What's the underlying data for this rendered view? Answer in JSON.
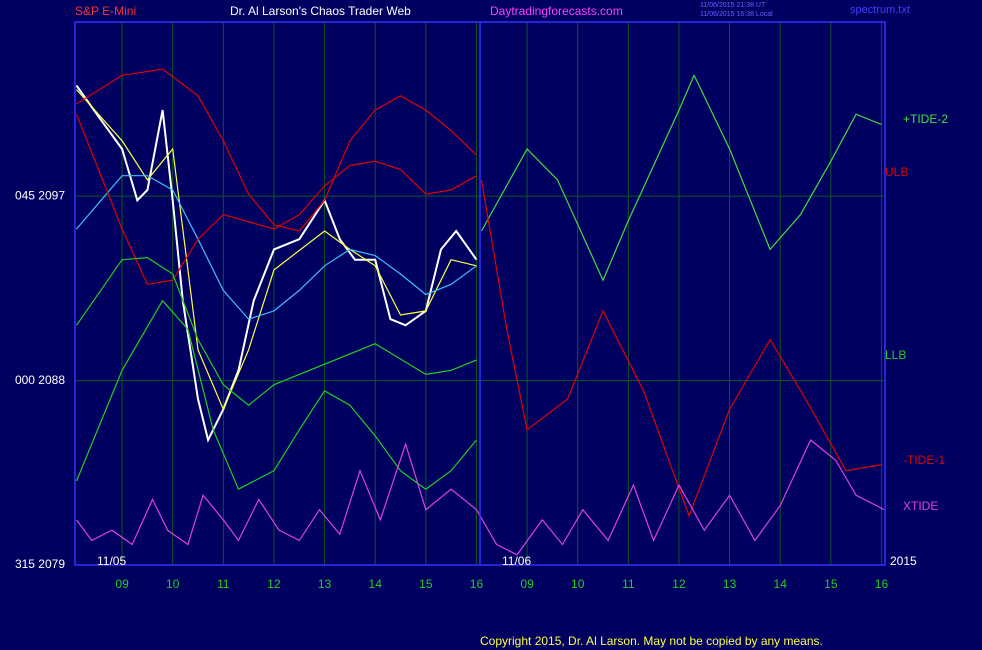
{
  "chart_data": {
    "type": "line",
    "title": "Dr. Al Larson's Chaos Trader Web",
    "instrument": "S&P E-Mini",
    "site": "Daytradingforecasts.com",
    "timestamps": [
      "11/06/2015 21:38 UT",
      "11/06/2015 16:38 Local"
    ],
    "file": "spectrum.txt",
    "dates": [
      "11/05",
      "11/06",
      "2015"
    ],
    "copyright": "Copyright 2015, Dr. Al Larson. May not be copied by any means.",
    "xlim": [
      8.07,
      24.07
    ],
    "xticks": [
      {
        "value": 9,
        "label": "09"
      },
      10,
      11,
      12,
      13,
      14,
      15,
      16,
      {
        "value": 17,
        "label": "09"
      },
      {
        "value": 18,
        "label": "10"
      },
      {
        "value": 19,
        "label": "11"
      },
      {
        "value": 20,
        "label": "12"
      },
      {
        "value": 21,
        "label": "13"
      },
      {
        "value": 22,
        "label": "14"
      },
      {
        "value": 23,
        "label": "15"
      },
      {
        "value": 24,
        "label": "16"
      }
    ],
    "ylim": [
      2079,
      2105.5
    ],
    "yticks": [
      {
        "value": 2079,
        "label": "315  2079"
      },
      {
        "value": 2088,
        "label": "000  2088"
      },
      {
        "value": 2097,
        "label": "045  2097"
      }
    ],
    "grid": true,
    "series": [
      {
        "color": "#ffffff",
        "x": [
          8.1,
          8.5,
          9,
          9.3,
          9.5,
          9.8,
          10,
          10.2,
          10.5,
          10.7,
          11,
          11.3,
          11.6,
          12,
          12.5,
          13,
          13.3,
          13.6,
          14,
          14.3,
          14.6,
          15,
          15.3,
          15.6,
          16
        ],
        "values": [
          2102.4,
          2101.0,
          2099.3,
          2096.8,
          2097.3,
          2101.2,
          2096.8,
          2091.9,
          2087.1,
          2085.1,
          2086.6,
          2088.5,
          2091.9,
          2094.4,
          2094.9,
          2096.8,
          2094.9,
          2093.9,
          2093.9,
          2091.0,
          2090.7,
          2091.4,
          2094.4,
          2095.3,
          2093.9
        ]
      },
      {
        "color": "#ffff40",
        "x": [
          8.1,
          9,
          9.5,
          10,
          10.5,
          11,
          11.5,
          12,
          13,
          13.5,
          14,
          14.5,
          15,
          15.5,
          16
        ],
        "values": [
          2102.2,
          2099.7,
          2097.8,
          2099.3,
          2089.5,
          2086.6,
          2089.5,
          2093.4,
          2095.3,
          2094.4,
          2093.6,
          2091.2,
          2091.4,
          2093.9,
          2093.6
        ]
      },
      {
        "color": "#40c0ff",
        "x": [
          8.1,
          9,
          9.5,
          10,
          10.5,
          11,
          11.5,
          12,
          12.5,
          13,
          13.5,
          14,
          14.5,
          15,
          15.5,
          16
        ],
        "values": [
          2095.4,
          2098.0,
          2098.0,
          2097.3,
          2094.9,
          2092.4,
          2091.0,
          2091.4,
          2092.4,
          2093.6,
          2094.4,
          2094.1,
          2093.2,
          2092.2,
          2092.7,
          2093.6
        ]
      },
      {
        "color": "#e00000",
        "x": [
          8.1,
          9,
          9.8,
          10.5,
          11,
          11.5,
          12,
          12.5,
          13,
          13.5,
          14,
          14.5,
          15,
          15.5,
          16
        ],
        "values": [
          2101.5,
          2102.9,
          2103.2,
          2101.9,
          2099.7,
          2097.1,
          2095.6,
          2095.3,
          2096.8,
          2099.7,
          2101.2,
          2101.9,
          2101.2,
          2100.2,
          2099.0
        ]
      },
      {
        "name": "ULB",
        "color": "#e00000",
        "x": [
          8.1,
          9,
          9.5,
          10,
          10.5,
          11,
          12,
          12.5,
          13,
          13.5,
          14,
          14.5,
          15,
          15.5,
          16
        ],
        "values": [
          2101.0,
          2095.4,
          2092.7,
          2092.9,
          2094.9,
          2096.1,
          2095.4,
          2096.1,
          2097.5,
          2098.5,
          2098.7,
          2098.3,
          2097.1,
          2097.3,
          2098.0
        ]
      },
      {
        "name": "LLB",
        "color": "#20d020",
        "x": [
          8.1,
          9,
          9.5,
          10,
          10.5,
          11,
          11.5,
          12,
          12.5,
          13,
          14,
          15,
          15.5,
          16
        ],
        "values": [
          2090.7,
          2093.9,
          2094.0,
          2093.2,
          2090.0,
          2087.8,
          2086.8,
          2087.8,
          2088.3,
          2088.8,
          2089.8,
          2088.3,
          2088.5,
          2089.0
        ]
      },
      {
        "color": "#20d020",
        "x": [
          8.1,
          9,
          9.8,
          10.3,
          10.8,
          11.3,
          12,
          12.5,
          13,
          13.5,
          14,
          14.5,
          15,
          15.5,
          16
        ],
        "values": [
          2083.1,
          2088.5,
          2091.9,
          2090.5,
          2085.6,
          2082.7,
          2083.6,
          2085.6,
          2087.5,
          2086.8,
          2085.3,
          2083.6,
          2082.7,
          2083.6,
          2085.1
        ]
      },
      {
        "name": "+TIDE-2",
        "color": "#40e040",
        "x": [
          16.1,
          17,
          17.6,
          18.5,
          19,
          20,
          20.3,
          21,
          21.8,
          22.4,
          23,
          23.5,
          24
        ],
        "values": [
          2095.3,
          2099.3,
          2097.8,
          2092.9,
          2095.8,
          2101.2,
          2102.9,
          2099.3,
          2094.4,
          2096.1,
          2098.7,
          2101.0,
          2100.5
        ]
      },
      {
        "name": "-TIDE-1",
        "color": "#e00000",
        "x": [
          16.1,
          16.6,
          17,
          17.8,
          18.5,
          19.3,
          20.2,
          21,
          21.8,
          22.5,
          23.3,
          24
        ],
        "values": [
          2097.8,
          2090.5,
          2085.6,
          2087.1,
          2091.4,
          2087.5,
          2081.4,
          2086.6,
          2090.0,
          2087.1,
          2083.6,
          2083.9
        ]
      },
      {
        "name": "XTIDE",
        "color": "#e040e0",
        "x": [
          8.1,
          8.4,
          8.8,
          9.2,
          9.6,
          9.9,
          10.3,
          10.6,
          11,
          11.3,
          11.7,
          12.1,
          12.5,
          12.9,
          13.3,
          13.7,
          14.1,
          14.6,
          15,
          15.5,
          16,
          16.4,
          16.8,
          17.3,
          17.7,
          18.1,
          18.6,
          19.1,
          19.5,
          20,
          20.5,
          21,
          21.5,
          22,
          22.6,
          23.1,
          23.5,
          23.9,
          24.05
        ],
        "values": [
          2081.2,
          2080.2,
          2080.7,
          2080.0,
          2082.2,
          2080.7,
          2080.0,
          2082.4,
          2081.2,
          2080.2,
          2082.2,
          2080.7,
          2080.2,
          2081.7,
          2080.5,
          2083.6,
          2081.2,
          2084.9,
          2081.7,
          2082.7,
          2081.7,
          2080.0,
          2079.5,
          2081.2,
          2080.0,
          2081.7,
          2080.2,
          2082.9,
          2080.2,
          2082.9,
          2080.7,
          2082.4,
          2080.2,
          2081.9,
          2085.1,
          2084.1,
          2082.4,
          2081.9,
          2081.7
        ]
      }
    ]
  }
}
